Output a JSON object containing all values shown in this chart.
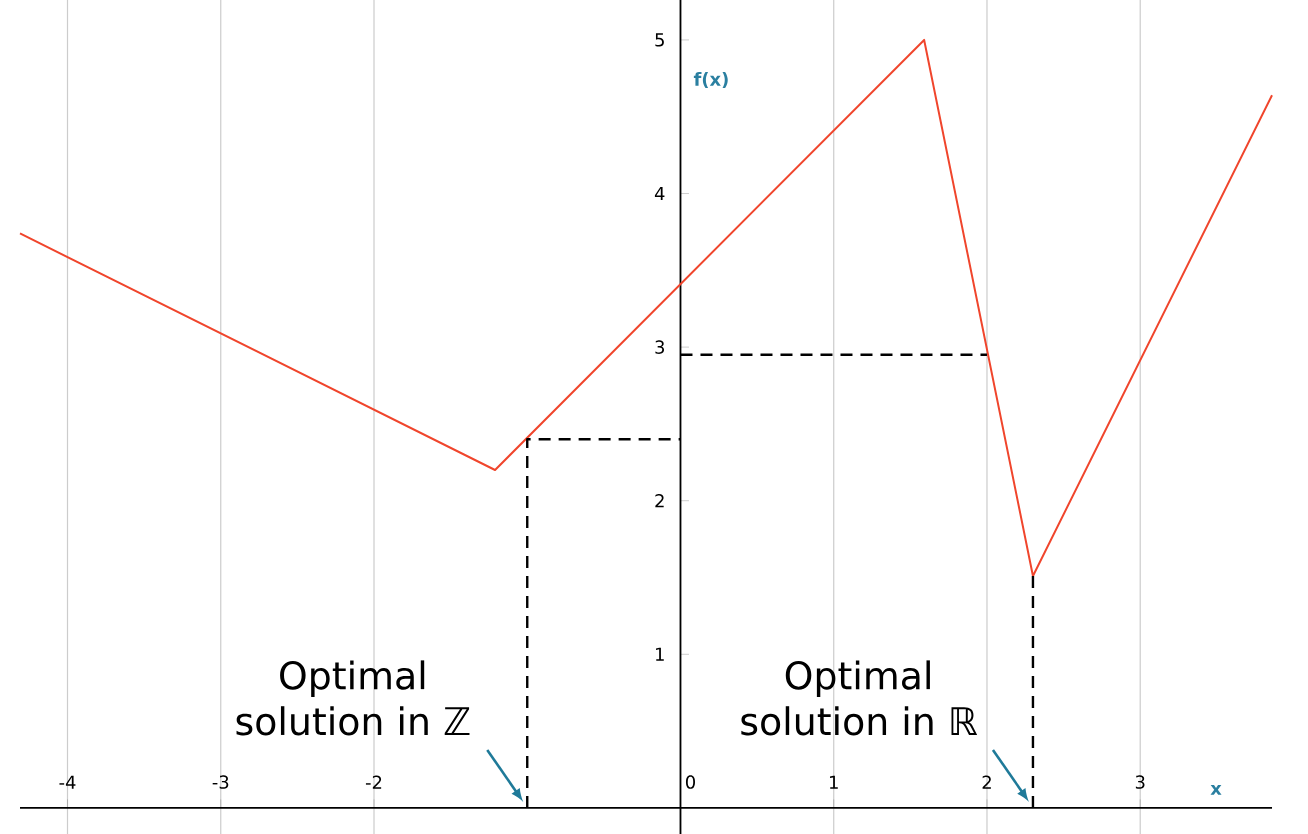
{
  "chart_data": {
    "type": "line",
    "xlabel": "x",
    "ylabel": "f(x)",
    "xlim": [
      -4.31,
      3.86
    ],
    "ylim": [
      -0.17,
      5.26
    ],
    "xticks": [
      -4,
      -3,
      -2,
      0,
      1,
      2,
      3
    ],
    "yticks": [
      1,
      2,
      3,
      4,
      5
    ],
    "grid": "x",
    "series": [
      {
        "color": "#f0452c",
        "x": [
          -4.31,
          -1.21,
          1.59,
          2.3,
          3.86
        ],
        "values": [
          3.74,
          2.2,
          5.0,
          1.51,
          4.64
        ]
      },
      {
        "color": "#000000",
        "line_style": "dashed",
        "x": [
          -1,
          -1,
          0
        ],
        "values": [
          0,
          2.4,
          2.4
        ]
      },
      {
        "color": "#000000",
        "line_style": "dashed",
        "x": [
          2.3,
          2.3
        ],
        "values": [
          0,
          1.51
        ]
      },
      {
        "color": "#000000",
        "line_style": "dashed",
        "x": [
          0,
          2
        ],
        "values": [
          2.95,
          2.95
        ]
      }
    ],
    "annotations": [
      {
        "text": "Optimal solution in ℤ",
        "x": -1,
        "y": 0
      },
      {
        "text": "Optimal solution in ℝ",
        "x": 2.3,
        "y": 0
      }
    ]
  }
}
